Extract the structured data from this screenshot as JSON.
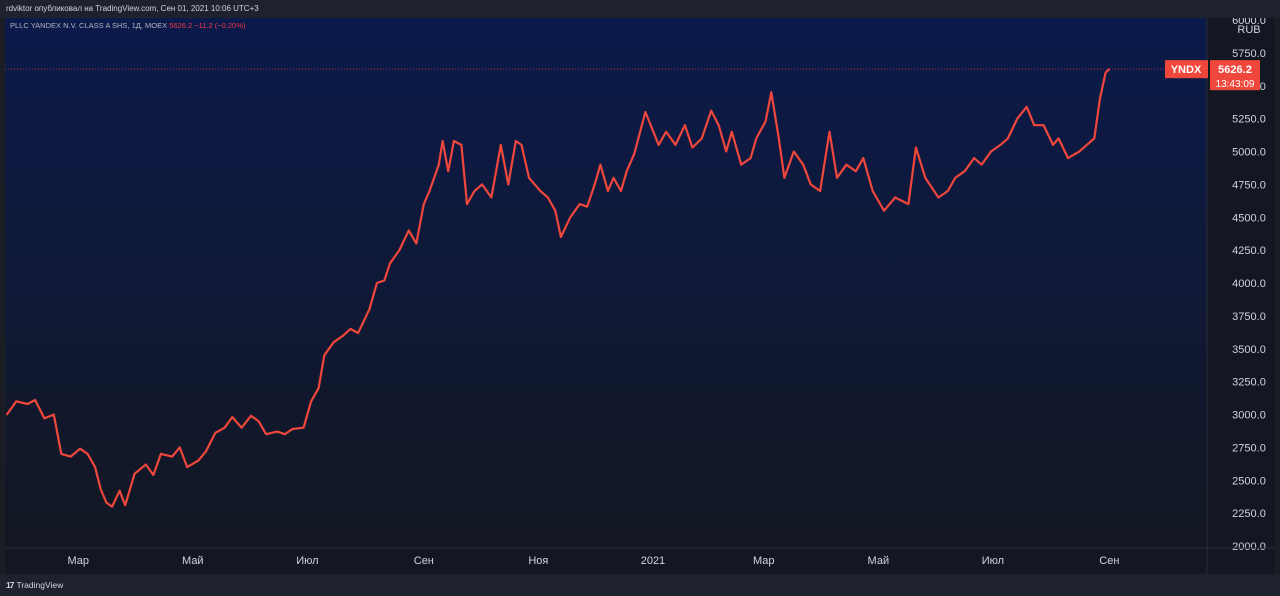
{
  "header": {
    "published_by": "rdviktor опубликовал на TradingView.com, Сен 01, 2021 10:06 UTC+3"
  },
  "legend": {
    "symbol": "PLLC YANDEX N.V. CLASS A SHS, 1Д, MOEX",
    "price": "5626.2",
    "change": "−11.2 (−0.20%)"
  },
  "price_tag": {
    "ticker": "YNDX",
    "price": "5626.2",
    "countdown": "13:43:09"
  },
  "footer": {
    "logo": "17",
    "brand": "TradingView"
  },
  "colors": {
    "line": "#f0473c",
    "background": "#131722",
    "gradient_top": "#0b1a4b",
    "axis_text": "#d1d4dc"
  },
  "chart_data": {
    "type": "line",
    "title": "",
    "currency": "RUB",
    "ylim": [
      2000,
      6000
    ],
    "y_ticks": [
      "2000.0",
      "2250.0",
      "2500.0",
      "2750.0",
      "3000.0",
      "3250.0",
      "3500.0",
      "3750.0",
      "4000.0",
      "4250.0",
      "4500.0",
      "4750.0",
      "5000.0",
      "5250.0",
      "5500.0",
      "5750.0",
      "6000.0"
    ],
    "x_ticks": [
      "Мар",
      "Май",
      "Июл",
      "Сен",
      "Ноя",
      "2021",
      "Мар",
      "Май",
      "Июл",
      "Сен"
    ],
    "x_tick_dates": [
      "2020-03-01",
      "2020-05-01",
      "2020-07-01",
      "2020-09-01",
      "2020-11-01",
      "2021-01-01",
      "2021-03-01",
      "2021-05-01",
      "2021-07-01",
      "2021-09-01"
    ],
    "x_range": [
      "2020-01-22",
      "2021-10-23"
    ],
    "last_value": 5626.2,
    "series": [
      {
        "points": [
          [
            "2020-01-23",
            3000
          ],
          [
            "2020-01-28",
            3100
          ],
          [
            "2020-02-03",
            3080
          ],
          [
            "2020-02-07",
            3110
          ],
          [
            "2020-02-12",
            2970
          ],
          [
            "2020-02-17",
            3000
          ],
          [
            "2020-02-21",
            2700
          ],
          [
            "2020-02-26",
            2680
          ],
          [
            "2020-03-02",
            2740
          ],
          [
            "2020-03-06",
            2700
          ],
          [
            "2020-03-10",
            2600
          ],
          [
            "2020-03-13",
            2430
          ],
          [
            "2020-03-16",
            2330
          ],
          [
            "2020-03-19",
            2300
          ],
          [
            "2020-03-23",
            2420
          ],
          [
            "2020-03-26",
            2310
          ],
          [
            "2020-03-31",
            2550
          ],
          [
            "2020-04-06",
            2620
          ],
          [
            "2020-04-10",
            2540
          ],
          [
            "2020-04-14",
            2700
          ],
          [
            "2020-04-20",
            2680
          ],
          [
            "2020-04-24",
            2750
          ],
          [
            "2020-04-28",
            2600
          ],
          [
            "2020-05-04",
            2650
          ],
          [
            "2020-05-08",
            2720
          ],
          [
            "2020-05-13",
            2860
          ],
          [
            "2020-05-18",
            2900
          ],
          [
            "2020-05-22",
            2980
          ],
          [
            "2020-05-27",
            2900
          ],
          [
            "2020-06-01",
            2990
          ],
          [
            "2020-06-05",
            2950
          ],
          [
            "2020-06-09",
            2850
          ],
          [
            "2020-06-15",
            2870
          ],
          [
            "2020-06-19",
            2850
          ],
          [
            "2020-06-23",
            2890
          ],
          [
            "2020-06-29",
            2900
          ],
          [
            "2020-07-03",
            3100
          ],
          [
            "2020-07-07",
            3200
          ],
          [
            "2020-07-10",
            3450
          ],
          [
            "2020-07-15",
            3550
          ],
          [
            "2020-07-20",
            3600
          ],
          [
            "2020-07-24",
            3650
          ],
          [
            "2020-07-28",
            3620
          ],
          [
            "2020-08-03",
            3800
          ],
          [
            "2020-08-07",
            4000
          ],
          [
            "2020-08-11",
            4020
          ],
          [
            "2020-08-14",
            4150
          ],
          [
            "2020-08-19",
            4250
          ],
          [
            "2020-08-24",
            4400
          ],
          [
            "2020-08-28",
            4300
          ],
          [
            "2020-09-01",
            4600
          ],
          [
            "2020-09-04",
            4700
          ],
          [
            "2020-09-09",
            4900
          ],
          [
            "2020-09-11",
            5080
          ],
          [
            "2020-09-14",
            4850
          ],
          [
            "2020-09-17",
            5080
          ],
          [
            "2020-09-21",
            5050
          ],
          [
            "2020-09-24",
            4600
          ],
          [
            "2020-09-28",
            4700
          ],
          [
            "2020-10-02",
            4750
          ],
          [
            "2020-10-07",
            4650
          ],
          [
            "2020-10-12",
            5050
          ],
          [
            "2020-10-16",
            4750
          ],
          [
            "2020-10-20",
            5080
          ],
          [
            "2020-10-23",
            5050
          ],
          [
            "2020-10-27",
            4800
          ],
          [
            "2020-11-02",
            4700
          ],
          [
            "2020-11-06",
            4650
          ],
          [
            "2020-11-10",
            4550
          ],
          [
            "2020-11-13",
            4350
          ],
          [
            "2020-11-18",
            4500
          ],
          [
            "2020-11-23",
            4600
          ],
          [
            "2020-11-27",
            4580
          ],
          [
            "2020-12-01",
            4750
          ],
          [
            "2020-12-04",
            4900
          ],
          [
            "2020-12-08",
            4700
          ],
          [
            "2020-12-11",
            4800
          ],
          [
            "2020-12-15",
            4700
          ],
          [
            "2020-12-18",
            4850
          ],
          [
            "2020-12-22",
            4980
          ],
          [
            "2020-12-28",
            5300
          ],
          [
            "2021-01-04",
            5050
          ],
          [
            "2021-01-08",
            5150
          ],
          [
            "2021-01-13",
            5050
          ],
          [
            "2021-01-18",
            5200
          ],
          [
            "2021-01-22",
            5030
          ],
          [
            "2021-01-27",
            5100
          ],
          [
            "2021-02-01",
            5310
          ],
          [
            "2021-02-05",
            5200
          ],
          [
            "2021-02-09",
            5000
          ],
          [
            "2021-02-12",
            5150
          ],
          [
            "2021-02-17",
            4900
          ],
          [
            "2021-02-22",
            4950
          ],
          [
            "2021-02-25",
            5100
          ],
          [
            "2021-03-02",
            5230
          ],
          [
            "2021-03-05",
            5450
          ],
          [
            "2021-03-09",
            5100
          ],
          [
            "2021-03-12",
            4800
          ],
          [
            "2021-03-17",
            5000
          ],
          [
            "2021-03-22",
            4900
          ],
          [
            "2021-03-26",
            4750
          ],
          [
            "2021-03-31",
            4700
          ],
          [
            "2021-04-05",
            5150
          ],
          [
            "2021-04-09",
            4800
          ],
          [
            "2021-04-14",
            4900
          ],
          [
            "2021-04-19",
            4850
          ],
          [
            "2021-04-23",
            4950
          ],
          [
            "2021-04-28",
            4700
          ],
          [
            "2021-05-04",
            4550
          ],
          [
            "2021-05-10",
            4650
          ],
          [
            "2021-05-17",
            4600
          ],
          [
            "2021-05-21",
            5030
          ],
          [
            "2021-05-26",
            4800
          ],
          [
            "2021-06-02",
            4650
          ],
          [
            "2021-06-07",
            4700
          ],
          [
            "2021-06-11",
            4800
          ],
          [
            "2021-06-16",
            4850
          ],
          [
            "2021-06-21",
            4950
          ],
          [
            "2021-06-25",
            4900
          ],
          [
            "2021-06-30",
            5000
          ],
          [
            "2021-07-05",
            5050
          ],
          [
            "2021-07-09",
            5100
          ],
          [
            "2021-07-14",
            5250
          ],
          [
            "2021-07-19",
            5340
          ],
          [
            "2021-07-23",
            5200
          ],
          [
            "2021-07-28",
            5200
          ],
          [
            "2021-08-02",
            5050
          ],
          [
            "2021-08-05",
            5100
          ],
          [
            "2021-08-10",
            4950
          ],
          [
            "2021-08-16",
            5000
          ],
          [
            "2021-08-20",
            5050
          ],
          [
            "2021-08-24",
            5100
          ],
          [
            "2021-08-27",
            5400
          ],
          [
            "2021-08-30",
            5600
          ],
          [
            "2021-09-01",
            5626.2
          ]
        ]
      }
    ]
  }
}
